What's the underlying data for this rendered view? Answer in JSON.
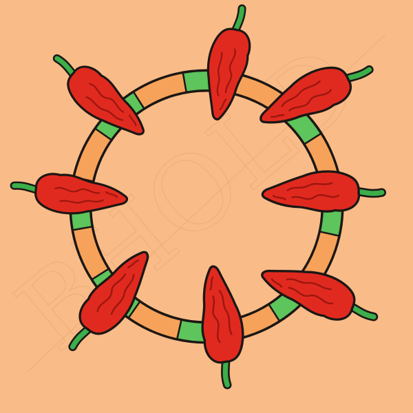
{
  "illustration": {
    "subject": "chili-pepper-ring",
    "pepper_count": 8,
    "ring_segments": 16,
    "watermark_text": "BHOLD",
    "colors": {
      "background": "#f9bc88",
      "pepper": "#e12a1f",
      "pepper_dark": "#9e1710",
      "stem": "#3cae4a",
      "ring_green": "#5ec45c",
      "ring_orange": "#f7a25a",
      "outline": "#1c1714"
    }
  }
}
